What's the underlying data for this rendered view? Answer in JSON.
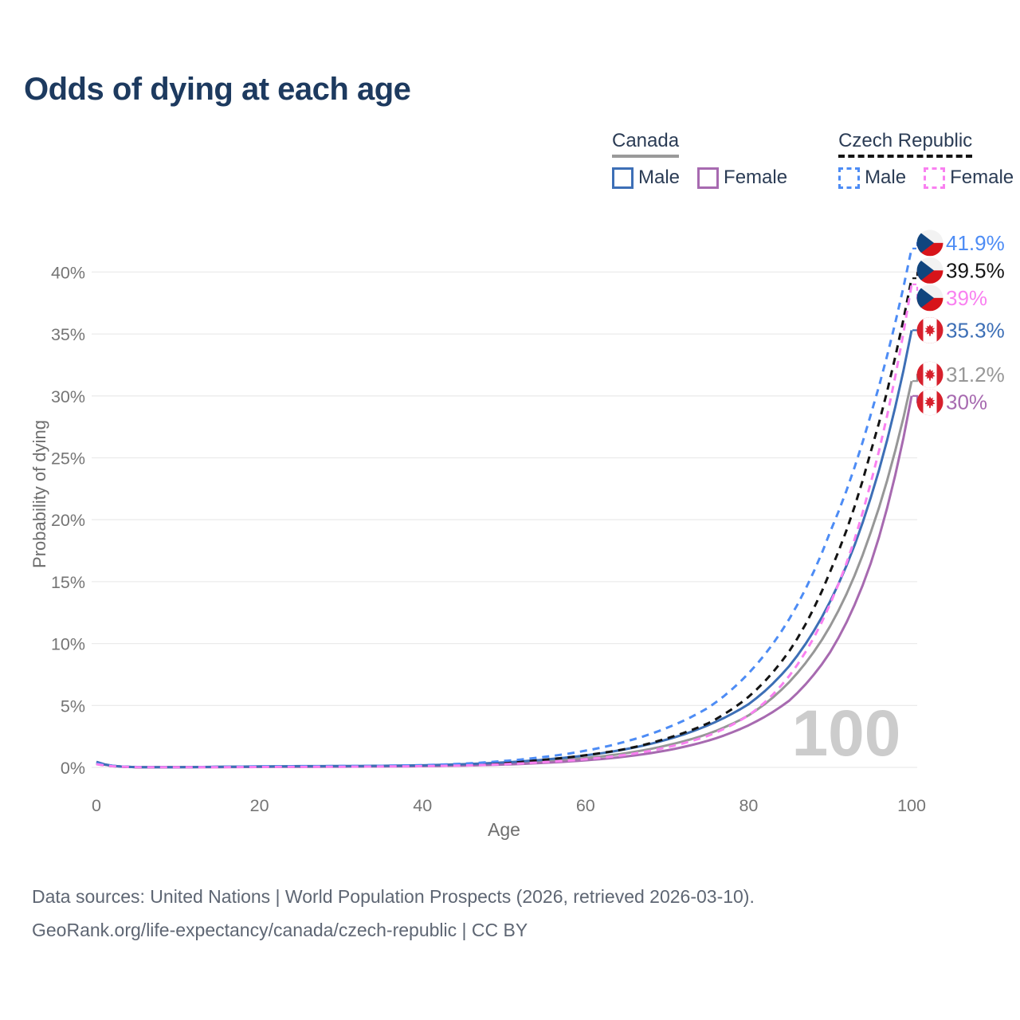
{
  "title": "Odds of dying at each age",
  "legend": {
    "groups": [
      {
        "id": "canada",
        "label": "Canada",
        "line_style": "solid",
        "line_color": "#9a9a9a",
        "items": [
          {
            "id": "canada-male",
            "label": "Male",
            "color": "#3d6fb6"
          },
          {
            "id": "canada-female",
            "label": "Female",
            "color": "#a76ab0"
          }
        ]
      },
      {
        "id": "czech-republic",
        "label": "Czech Republic",
        "line_style": "dashed",
        "line_color": "#141414",
        "items": [
          {
            "id": "czech-male",
            "label": "Male",
            "color": "#4d8cf5"
          },
          {
            "id": "czech-female",
            "label": "Female",
            "color": "#f980f0"
          }
        ]
      }
    ]
  },
  "axes": {
    "y_title": "Probability of dying",
    "x_title": "Age",
    "y_ticks": [
      "0%",
      "5%",
      "10%",
      "15%",
      "20%",
      "25%",
      "30%",
      "35%",
      "40%"
    ],
    "y_tick_values": [
      0,
      5,
      10,
      15,
      20,
      25,
      30,
      35,
      40
    ],
    "x_ticks": [
      0,
      20,
      40,
      60,
      80,
      100
    ]
  },
  "watermark": "100",
  "footer": {
    "line1": "Data sources: United Nations | World Population Prospects (2026, retrieved 2026-03-10).",
    "line2": "GeoRank.org/life-expectancy/canada/czech-republic | CC BY"
  },
  "colors": {
    "title": "#1d3a5f",
    "axis_text": "#757575",
    "gridline": "#ebebeb",
    "watermark": "#cccccc",
    "czech_flag_blue": "#11457e",
    "czech_flag_red": "#d7141a",
    "canada_flag_red": "#d7202c"
  },
  "chart_data": {
    "type": "line",
    "title": "Odds of dying at each age",
    "xlabel": "Age",
    "ylabel": "Probability of dying",
    "xlim": [
      0,
      100
    ],
    "ylim": [
      0,
      43
    ],
    "grid": "horizontal",
    "legend_position": "top-right",
    "x": [
      0,
      5,
      10,
      15,
      20,
      25,
      30,
      35,
      40,
      45,
      50,
      55,
      60,
      65,
      70,
      75,
      80,
      85,
      90,
      95,
      100
    ],
    "unit": "percent",
    "series": [
      {
        "id": "czech-male",
        "name": "Czech Republic Male",
        "country": "Czech Republic",
        "sex": "Male",
        "flag": "cz",
        "color": "#4d8cf5",
        "dash": true,
        "end_label": "41.9%",
        "end_value": 41.9,
        "values": [
          0.32,
          0.03,
          0.02,
          0.05,
          0.08,
          0.09,
          0.11,
          0.13,
          0.18,
          0.3,
          0.52,
          0.85,
          1.35,
          2.1,
          3.2,
          4.8,
          7.6,
          12.0,
          19.0,
          28.5,
          41.9
        ]
      },
      {
        "id": "czech-both",
        "name": "Czech Republic Both sexes",
        "country": "Czech Republic",
        "sex": "Both",
        "flag": "cz",
        "color": "#141414",
        "dash": true,
        "end_label": "39.5%",
        "end_value": 39.5,
        "values": [
          0.28,
          0.02,
          0.02,
          0.04,
          0.05,
          0.06,
          0.08,
          0.1,
          0.14,
          0.22,
          0.38,
          0.62,
          0.98,
          1.5,
          2.35,
          3.55,
          5.7,
          9.4,
          15.8,
          25.5,
          39.5
        ]
      },
      {
        "id": "czech-female",
        "name": "Czech Republic Female",
        "country": "Czech Republic",
        "sex": "Female",
        "flag": "cz",
        "color": "#f980f0",
        "dash": true,
        "end_label": "39%",
        "end_value": 39.0,
        "values": [
          0.26,
          0.02,
          0.01,
          0.02,
          0.03,
          0.04,
          0.05,
          0.07,
          0.1,
          0.15,
          0.26,
          0.43,
          0.66,
          1.02,
          1.62,
          2.55,
          4.2,
          7.4,
          13.2,
          23.0,
          39.0
        ]
      },
      {
        "id": "canada-male",
        "name": "Canada Male",
        "country": "Canada",
        "sex": "Male",
        "flag": "ca",
        "color": "#3d6fb6",
        "dash": false,
        "end_label": "35.3%",
        "end_value": 35.3,
        "values": [
          0.45,
          0.02,
          0.02,
          0.05,
          0.08,
          0.1,
          0.11,
          0.13,
          0.17,
          0.26,
          0.4,
          0.63,
          0.97,
          1.48,
          2.25,
          3.4,
          5.1,
          8.2,
          13.4,
          21.8,
          35.3
        ]
      },
      {
        "id": "canada-both",
        "name": "Canada Both sexes",
        "country": "Canada",
        "sex": "Both",
        "flag": "ca",
        "color": "#979797",
        "dash": false,
        "end_label": "31.2%",
        "end_value": 31.2,
        "values": [
          0.42,
          0.02,
          0.02,
          0.04,
          0.06,
          0.07,
          0.08,
          0.1,
          0.13,
          0.2,
          0.31,
          0.49,
          0.75,
          1.15,
          1.78,
          2.7,
          4.2,
          6.9,
          11.4,
          19.0,
          31.2
        ]
      },
      {
        "id": "canada-female",
        "name": "Canada Female",
        "country": "Canada",
        "sex": "Female",
        "flag": "ca",
        "color": "#a76ab0",
        "dash": false,
        "end_label": "30%",
        "end_value": 30.0,
        "values": [
          0.38,
          0.02,
          0.01,
          0.02,
          0.04,
          0.05,
          0.06,
          0.07,
          0.1,
          0.15,
          0.23,
          0.37,
          0.57,
          0.88,
          1.38,
          2.15,
          3.4,
          5.4,
          9.3,
          16.5,
          30.0
        ]
      }
    ]
  }
}
